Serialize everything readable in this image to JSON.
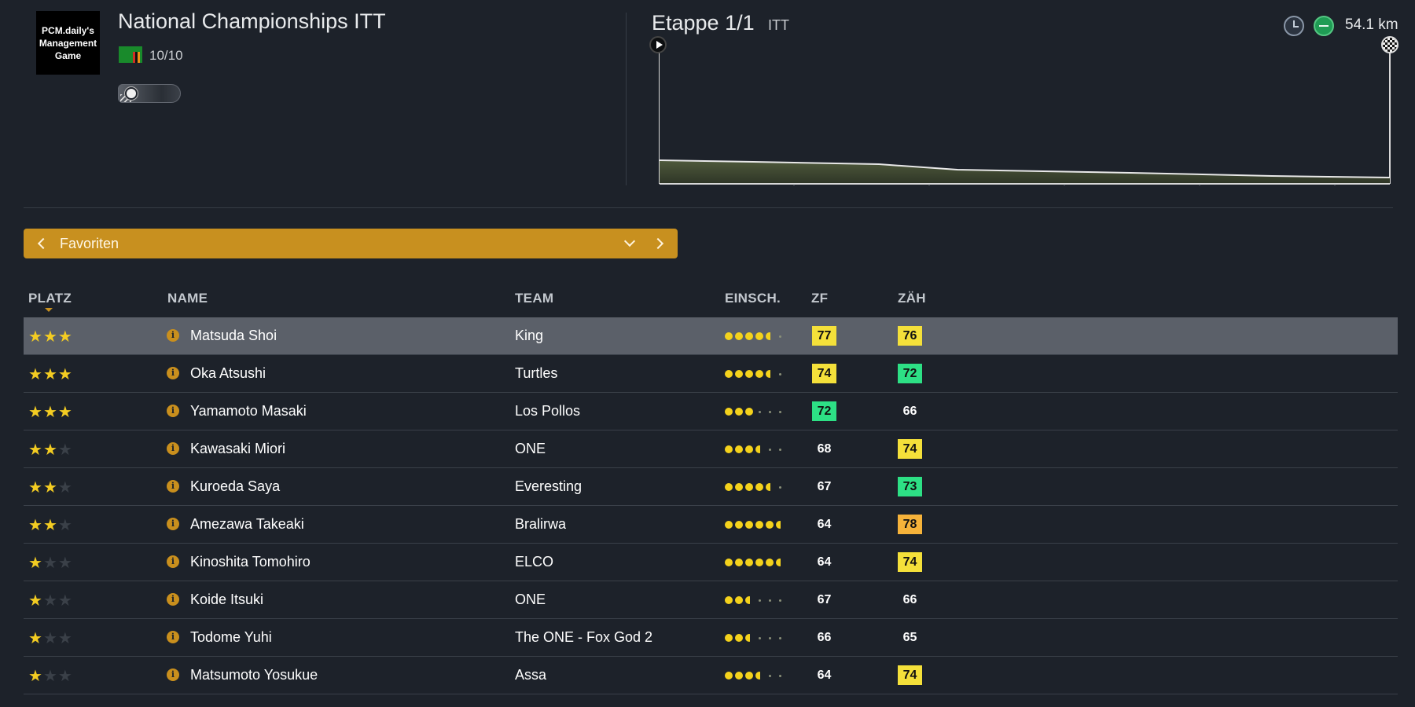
{
  "logo": {
    "line1": "PCM.daily's",
    "line2": "Management",
    "line3": "Game"
  },
  "race": {
    "title": "National Championships ITT",
    "class": "10/10"
  },
  "stage": {
    "title": "Etappe 1/1",
    "type": "ITT",
    "distance": "54.1 km"
  },
  "filter": {
    "label": "Favoriten"
  },
  "columns": {
    "platz": "PLATZ",
    "name": "NAME",
    "team": "TEAM",
    "einsch": "EINSCH.",
    "zf": "ZF",
    "zah": "ZÄH"
  },
  "riders": [
    {
      "stars": 3,
      "name": "Matsuda Shoi",
      "team": "King",
      "fitness": 4.5,
      "zf": "77",
      "zf_color": "yellow",
      "zah": "76",
      "zah_color": "yellow"
    },
    {
      "stars": 3,
      "name": "Oka Atsushi",
      "team": "Turtles",
      "fitness": 4.5,
      "zf": "74",
      "zf_color": "yellow",
      "zah": "72",
      "zah_color": "green"
    },
    {
      "stars": 3,
      "name": "Yamamoto Masaki",
      "team": "Los Pollos",
      "fitness": 3,
      "zf": "72",
      "zf_color": "green",
      "zah": "66",
      "zah_color": "plain"
    },
    {
      "stars": 2,
      "name": "Kawasaki Miori",
      "team": "ONE",
      "fitness": 3.5,
      "zf": "68",
      "zf_color": "plain",
      "zah": "74",
      "zah_color": "yellow"
    },
    {
      "stars": 2,
      "name": "Kuroeda Saya",
      "team": "Everesting",
      "fitness": 4.5,
      "zf": "67",
      "zf_color": "plain",
      "zah": "73",
      "zah_color": "green"
    },
    {
      "stars": 2,
      "name": "Amezawa Takeaki",
      "team": "Bralirwa",
      "fitness": 5.5,
      "zf": "64",
      "zf_color": "plain",
      "zah": "78",
      "zah_color": "orange"
    },
    {
      "stars": 1,
      "name": "Kinoshita Tomohiro",
      "team": "ELCO",
      "fitness": 5.5,
      "zf": "64",
      "zf_color": "plain",
      "zah": "74",
      "zah_color": "yellow"
    },
    {
      "stars": 1,
      "name": "Koide Itsuki",
      "team": "ONE",
      "fitness": 2.5,
      "zf": "67",
      "zf_color": "plain",
      "zah": "66",
      "zah_color": "plain"
    },
    {
      "stars": 1,
      "name": "Todome Yuhi",
      "team": "The ONE - Fox God 2",
      "fitness": 2.5,
      "zf": "66",
      "zf_color": "plain",
      "zah": "65",
      "zah_color": "plain"
    },
    {
      "stars": 1,
      "name": "Matsumoto Yosukue",
      "team": "Assa",
      "fitness": 3.5,
      "zf": "64",
      "zf_color": "plain",
      "zah": "74",
      "zah_color": "yellow"
    }
  ]
}
